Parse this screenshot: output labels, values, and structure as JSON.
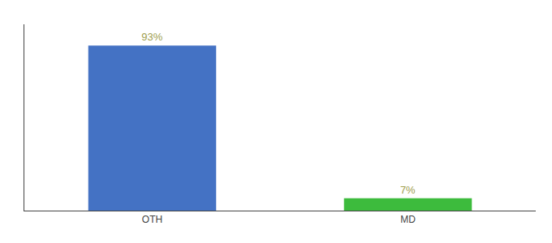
{
  "chart_data": {
    "type": "bar",
    "categories": [
      "OTH",
      "MD"
    ],
    "values": [
      93,
      7
    ],
    "value_labels": [
      "93%",
      "7%"
    ],
    "colors": [
      "#4472c4",
      "#3dbb3d"
    ],
    "ylim": [
      0,
      105
    ],
    "yticks": [],
    "tick_labels": "x",
    "grid": false,
    "data_labels": true
  }
}
